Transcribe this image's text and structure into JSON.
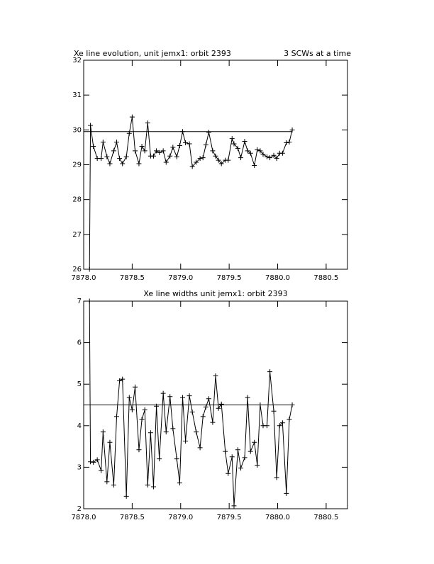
{
  "chart_data": [
    {
      "type": "line",
      "title": "Xe line evolution, unit jemx1: orbit 2393",
      "annotation": "3 SCWs at a time",
      "color": "#000000",
      "marker": "+",
      "hline": 29.95,
      "xlim": [
        7878.0,
        7880.72
      ],
      "ylim": [
        26,
        32
      ],
      "xticks": [
        {
          "value": 7878.0,
          "label": "7878.0"
        },
        {
          "value": 7878.5,
          "label": "7878.5"
        },
        {
          "value": 7879.0,
          "label": "7879.0"
        },
        {
          "value": 7879.5,
          "label": "7879.5"
        },
        {
          "value": 7880.0,
          "label": "7880.0"
        },
        {
          "value": 7880.5,
          "label": "7880.5"
        }
      ],
      "yticks": [
        26,
        27,
        28,
        29,
        30,
        31,
        32
      ],
      "x": [
        7878.06,
        7878.07,
        7878.1,
        7878.14,
        7878.18,
        7878.2,
        7878.24,
        7878.27,
        7878.31,
        7878.34,
        7878.37,
        7878.4,
        7878.44,
        7878.47,
        7878.5,
        7878.53,
        7878.57,
        7878.6,
        7878.63,
        7878.66,
        7878.69,
        7878.72,
        7878.75,
        7878.78,
        7878.82,
        7878.85,
        7878.89,
        7878.92,
        7878.96,
        7878.99,
        7879.02,
        7879.05,
        7879.09,
        7879.12,
        7879.16,
        7879.2,
        7879.23,
        7879.26,
        7879.29,
        7879.33,
        7879.36,
        7879.39,
        7879.42,
        7879.46,
        7879.49,
        7879.53,
        7879.55,
        7879.59,
        7879.62,
        7879.66,
        7879.69,
        7879.72,
        7879.76,
        7879.79,
        7879.82,
        7879.85,
        7879.89,
        7879.92,
        7879.96,
        7879.99,
        7880.02,
        7880.05,
        7880.09,
        7880.12,
        7880.15
      ],
      "values": [
        26,
        30.13,
        29.53,
        29.18,
        29.18,
        29.65,
        29.23,
        29.03,
        29.4,
        29.65,
        29.18,
        29.03,
        29.23,
        29.9,
        30.37,
        29.4,
        29.03,
        29.53,
        29.4,
        30.2,
        29.25,
        29.25,
        29.4,
        29.35,
        29.4,
        29.07,
        29.25,
        29.5,
        29.23,
        29.55,
        29.95,
        29.63,
        29.6,
        28.95,
        29.07,
        29.18,
        29.2,
        29.57,
        29.93,
        29.4,
        29.25,
        29.13,
        29.03,
        29.13,
        29.13,
        29.75,
        29.6,
        29.47,
        29.2,
        29.67,
        29.4,
        29.33,
        28.98,
        29.43,
        29.4,
        29.3,
        29.23,
        29.2,
        29.27,
        29.18,
        29.33,
        29.33,
        29.63,
        29.65,
        30.0
      ]
    },
    {
      "type": "line",
      "title": "Xe line widths unit jemx1: orbit 2393",
      "color": "#000000",
      "marker": "+",
      "hline": 4.5,
      "xlim": [
        7878.0,
        7880.72
      ],
      "ylim": [
        2,
        7
      ],
      "xticks": [
        {
          "value": 7878.0,
          "label": "7878.0"
        },
        {
          "value": 7878.5,
          "label": "7878.5"
        },
        {
          "value": 7879.0,
          "label": "7879.0"
        },
        {
          "value": 7879.5,
          "label": "7879.5"
        },
        {
          "value": 7880.0,
          "label": "7880.0"
        },
        {
          "value": 7880.5,
          "label": "7880.5"
        }
      ],
      "yticks": [
        2,
        3,
        4,
        5,
        6,
        7
      ],
      "x": [
        7878.06,
        7878.07,
        7878.1,
        7878.14,
        7878.18,
        7878.2,
        7878.24,
        7878.27,
        7878.31,
        7878.34,
        7878.37,
        7878.4,
        7878.44,
        7878.47,
        7878.5,
        7878.53,
        7878.57,
        7878.6,
        7878.63,
        7878.66,
        7878.69,
        7878.72,
        7878.75,
        7878.78,
        7878.82,
        7878.85,
        7878.89,
        7878.92,
        7878.96,
        7878.99,
        7879.02,
        7879.05,
        7879.09,
        7879.12,
        7879.16,
        7879.2,
        7879.23,
        7879.26,
        7879.29,
        7879.33,
        7879.36,
        7879.39,
        7879.42,
        7879.46,
        7879.49,
        7879.53,
        7879.55,
        7879.59,
        7879.62,
        7879.66,
        7879.69,
        7879.72,
        7879.76,
        7879.79,
        7879.82,
        7879.85,
        7879.89,
        7879.92,
        7879.96,
        7879.99,
        7880.02,
        7880.05,
        7880.09,
        7880.12,
        7880.15
      ],
      "values": [
        7,
        3.13,
        3.12,
        3.18,
        2.92,
        3.85,
        2.65,
        3.6,
        2.57,
        4.22,
        5.08,
        5.12,
        2.3,
        4.68,
        4.38,
        4.93,
        3.42,
        4.15,
        4.38,
        2.57,
        3.83,
        2.53,
        4.47,
        3.2,
        4.78,
        3.85,
        4.7,
        3.93,
        3.2,
        2.62,
        4.68,
        3.63,
        4.72,
        4.33,
        3.85,
        3.47,
        4.22,
        4.45,
        4.65,
        4.08,
        5.2,
        4.42,
        4.52,
        3.38,
        2.85,
        3.25,
        2.07,
        3.42,
        2.98,
        3.23,
        4.68,
        3.38,
        3.6,
        3.05,
        4.5,
        4.0,
        4.0,
        5.3,
        4.35,
        2.75,
        4.0,
        4.07,
        2.37,
        4.15,
        4.5
      ]
    }
  ]
}
